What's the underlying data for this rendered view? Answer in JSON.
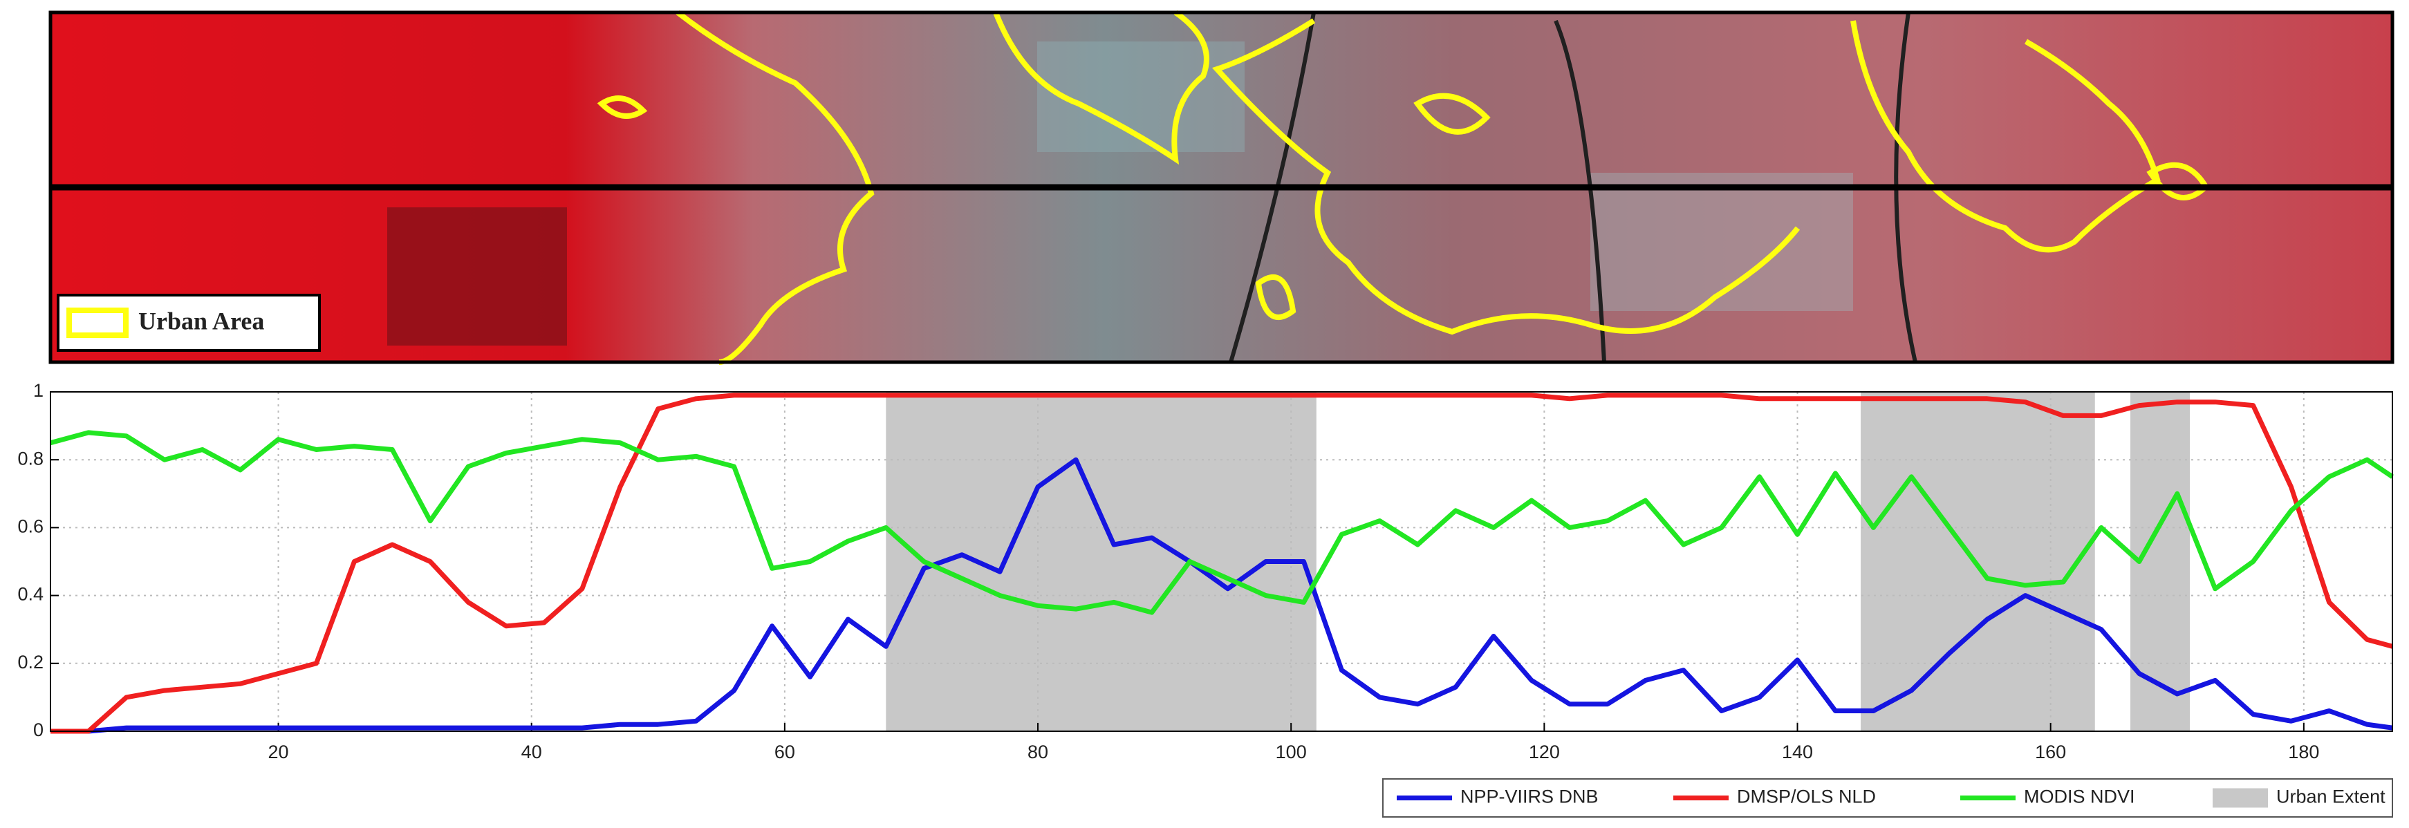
{
  "image_legend": "Urban Area",
  "chart_data": {
    "type": "line",
    "x": [
      2,
      5,
      8,
      11,
      14,
      17,
      20,
      23,
      26,
      29,
      32,
      35,
      38,
      41,
      44,
      47,
      50,
      53,
      56,
      59,
      62,
      65,
      68,
      71,
      74,
      77,
      80,
      83,
      86,
      89,
      92,
      95,
      98,
      101,
      104,
      107,
      110,
      113,
      116,
      119,
      122,
      125,
      128,
      131,
      134,
      137,
      140,
      143,
      146,
      149,
      152,
      155,
      158,
      161,
      164,
      167,
      170,
      173,
      176,
      179,
      182,
      185,
      187
    ],
    "series": [
      {
        "name": "NPP-VIIRS DNB",
        "color": "#1515e0",
        "values": [
          0,
          0,
          0.01,
          0.01,
          0.01,
          0.01,
          0.01,
          0.01,
          0.01,
          0.01,
          0.01,
          0.01,
          0.01,
          0.01,
          0.01,
          0.02,
          0.02,
          0.03,
          0.12,
          0.31,
          0.16,
          0.33,
          0.25,
          0.48,
          0.52,
          0.47,
          0.72,
          0.8,
          0.55,
          0.57,
          0.5,
          0.42,
          0.5,
          0.5,
          0.18,
          0.1,
          0.08,
          0.13,
          0.28,
          0.15,
          0.08,
          0.08,
          0.15,
          0.18,
          0.06,
          0.1,
          0.21,
          0.06,
          0.06,
          0.12,
          0.23,
          0.33,
          0.4,
          0.35,
          0.3,
          0.17,
          0.11,
          0.15,
          0.05,
          0.03,
          0.06,
          0.02,
          0.01
        ]
      },
      {
        "name": "DMSP/OLS NLD",
        "color": "#f02020",
        "values": [
          0,
          0,
          0.1,
          0.12,
          0.13,
          0.14,
          0.17,
          0.2,
          0.5,
          0.55,
          0.5,
          0.38,
          0.31,
          0.32,
          0.42,
          0.72,
          0.95,
          0.98,
          0.99,
          0.99,
          0.99,
          0.99,
          0.99,
          0.99,
          0.99,
          0.99,
          0.99,
          0.99,
          0.99,
          0.99,
          0.99,
          0.99,
          0.99,
          0.99,
          0.99,
          0.99,
          0.99,
          0.99,
          0.99,
          0.99,
          0.98,
          0.99,
          0.99,
          0.99,
          0.99,
          0.98,
          0.98,
          0.98,
          0.98,
          0.98,
          0.98,
          0.98,
          0.97,
          0.93,
          0.93,
          0.96,
          0.97,
          0.97,
          0.96,
          0.72,
          0.38,
          0.27,
          0.25
        ]
      },
      {
        "name": "MODIS NDVI",
        "color": "#22e622",
        "values": [
          0.85,
          0.88,
          0.87,
          0.8,
          0.83,
          0.77,
          0.86,
          0.83,
          0.84,
          0.83,
          0.62,
          0.78,
          0.82,
          0.84,
          0.86,
          0.85,
          0.8,
          0.81,
          0.78,
          0.48,
          0.5,
          0.56,
          0.6,
          0.5,
          0.45,
          0.4,
          0.37,
          0.36,
          0.38,
          0.35,
          0.5,
          0.45,
          0.4,
          0.38,
          0.58,
          0.62,
          0.55,
          0.65,
          0.6,
          0.68,
          0.6,
          0.62,
          0.68,
          0.55,
          0.6,
          0.75,
          0.58,
          0.76,
          0.6,
          0.75,
          0.6,
          0.45,
          0.43,
          0.44,
          0.6,
          0.5,
          0.7,
          0.42,
          0.5,
          0.65,
          0.75,
          0.8,
          0.75
        ]
      }
    ],
    "urban_extent": {
      "name": "Urban Extent",
      "color": "#c8c8c8",
      "ranges": [
        [
          68,
          102
        ],
        [
          145,
          163.5
        ],
        [
          166.3,
          171
        ]
      ]
    },
    "xlim": [
      2,
      187
    ],
    "xticks": [
      20,
      40,
      60,
      80,
      100,
      120,
      140,
      160,
      180
    ],
    "ylim": [
      0,
      1
    ],
    "yticks": [
      0,
      0.2,
      0.4,
      0.6,
      0.8,
      1
    ],
    "grid": true,
    "legend": "bottom-right"
  }
}
